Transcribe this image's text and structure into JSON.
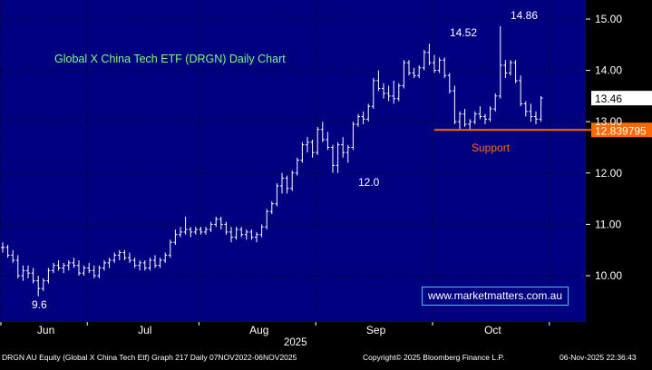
{
  "chart_data": {
    "type": "candlestick",
    "title": "Global X China Tech ETF (DRGN) Daily Chart",
    "ylim": [
      9.2,
      15.25
    ],
    "y_ticks": [
      10.0,
      11.0,
      12.0,
      13.0,
      14.0,
      15.0
    ],
    "y_tick_labels": [
      "10.00",
      "11.00",
      "12.00",
      "13.00",
      "14.00",
      "15.00"
    ],
    "x_ticks": [
      {
        "label": "Jun",
        "month": "2025-06"
      },
      {
        "label": "Jul",
        "month": "2025-07"
      },
      {
        "label": "Aug",
        "month": "2025-08"
      },
      {
        "label": "Sep",
        "month": "2025-09"
      },
      {
        "label": "Oct",
        "month": "2025-10"
      }
    ],
    "year_label": "2025",
    "last_price": 13.46,
    "last_price_label": "13.46",
    "support": {
      "value": 12.839795,
      "label": "12.839795",
      "text": "Support"
    },
    "annotations": [
      {
        "text": "9.6",
        "value": 9.6
      },
      {
        "text": "12.0",
        "value": 12.0
      },
      {
        "text": "14.52",
        "value": 14.52
      },
      {
        "text": "14.86",
        "value": 14.86
      }
    ],
    "bars": [
      [
        10.55,
        10.65,
        10.45,
        10.55
      ],
      [
        10.55,
        10.6,
        10.35,
        10.4
      ],
      [
        10.4,
        10.5,
        10.25,
        10.3
      ],
      [
        10.3,
        10.4,
        9.95,
        10.0
      ],
      [
        10.0,
        10.2,
        9.9,
        10.1
      ],
      [
        10.1,
        10.2,
        9.95,
        10.05
      ],
      [
        10.05,
        10.15,
        9.85,
        9.9
      ],
      [
        9.9,
        10.0,
        9.6,
        9.75
      ],
      [
        9.75,
        9.95,
        9.7,
        9.9
      ],
      [
        9.9,
        10.15,
        9.85,
        10.1
      ],
      [
        10.1,
        10.25,
        10.05,
        10.2
      ],
      [
        10.2,
        10.3,
        10.1,
        10.15
      ],
      [
        10.15,
        10.25,
        10.05,
        10.2
      ],
      [
        10.2,
        10.3,
        10.1,
        10.25
      ],
      [
        10.25,
        10.35,
        10.15,
        10.2
      ],
      [
        10.2,
        10.3,
        10.0,
        10.05
      ],
      [
        10.05,
        10.2,
        10.0,
        10.15
      ],
      [
        10.15,
        10.25,
        10.05,
        10.1
      ],
      [
        10.1,
        10.2,
        9.95,
        10.0
      ],
      [
        10.0,
        10.2,
        9.95,
        10.15
      ],
      [
        10.15,
        10.3,
        10.1,
        10.25
      ],
      [
        10.25,
        10.35,
        10.15,
        10.3
      ],
      [
        10.3,
        10.45,
        10.25,
        10.4
      ],
      [
        10.4,
        10.5,
        10.3,
        10.45
      ],
      [
        10.45,
        10.5,
        10.3,
        10.35
      ],
      [
        10.35,
        10.45,
        10.25,
        10.3
      ],
      [
        10.3,
        10.35,
        10.15,
        10.2
      ],
      [
        10.2,
        10.3,
        10.1,
        10.25
      ],
      [
        10.25,
        10.3,
        10.1,
        10.15
      ],
      [
        10.15,
        10.35,
        10.1,
        10.3
      ],
      [
        10.3,
        10.4,
        10.15,
        10.2
      ],
      [
        10.2,
        10.35,
        10.15,
        10.3
      ],
      [
        10.3,
        10.45,
        10.25,
        10.4
      ],
      [
        10.4,
        10.7,
        10.35,
        10.65
      ],
      [
        10.65,
        10.9,
        10.6,
        10.8
      ],
      [
        10.8,
        10.95,
        10.75,
        10.85
      ],
      [
        10.85,
        11.15,
        10.8,
        10.9
      ],
      [
        10.9,
        10.95,
        10.75,
        10.85
      ],
      [
        10.85,
        10.95,
        10.8,
        10.9
      ],
      [
        10.9,
        10.95,
        10.8,
        10.85
      ],
      [
        10.85,
        10.95,
        10.8,
        10.9
      ],
      [
        10.9,
        11.05,
        10.85,
        11.0
      ],
      [
        11.0,
        11.15,
        10.95,
        11.1
      ],
      [
        11.1,
        11.15,
        10.9,
        11.0
      ],
      [
        11.0,
        11.05,
        10.8,
        10.85
      ],
      [
        10.85,
        10.95,
        10.65,
        10.75
      ],
      [
        10.75,
        10.95,
        10.7,
        10.9
      ],
      [
        10.9,
        10.95,
        10.75,
        10.8
      ],
      [
        10.8,
        10.9,
        10.7,
        10.85
      ],
      [
        10.85,
        10.9,
        10.7,
        10.75
      ],
      [
        10.75,
        10.85,
        10.65,
        10.8
      ],
      [
        10.8,
        11.0,
        10.75,
        10.95
      ],
      [
        10.95,
        11.3,
        10.9,
        11.25
      ],
      [
        11.25,
        11.45,
        11.2,
        11.4
      ],
      [
        11.4,
        11.8,
        11.35,
        11.75
      ],
      [
        11.75,
        12.0,
        11.6,
        11.9
      ],
      [
        11.9,
        11.95,
        11.6,
        11.7
      ],
      [
        11.7,
        12.05,
        11.65,
        12.0
      ],
      [
        12.0,
        12.3,
        11.95,
        12.25
      ],
      [
        12.25,
        12.6,
        12.2,
        12.55
      ],
      [
        12.55,
        12.7,
        12.4,
        12.6
      ],
      [
        12.6,
        12.65,
        12.3,
        12.4
      ],
      [
        12.4,
        12.9,
        12.35,
        12.85
      ],
      [
        12.85,
        13.0,
        12.6,
        12.65
      ],
      [
        12.65,
        12.8,
        12.45,
        12.5
      ],
      [
        12.5,
        12.55,
        12.0,
        12.15
      ],
      [
        12.15,
        12.6,
        12.0,
        12.55
      ],
      [
        12.55,
        12.7,
        12.3,
        12.4
      ],
      [
        12.4,
        12.55,
        12.2,
        12.5
      ],
      [
        12.5,
        13.0,
        12.45,
        12.95
      ],
      [
        12.95,
        13.15,
        12.9,
        13.1
      ],
      [
        13.1,
        13.2,
        12.95,
        13.05
      ],
      [
        13.05,
        13.35,
        13.0,
        13.3
      ],
      [
        13.3,
        13.85,
        13.25,
        13.8
      ],
      [
        13.8,
        14.0,
        13.6,
        13.65
      ],
      [
        13.65,
        13.75,
        13.45,
        13.55
      ],
      [
        13.55,
        13.7,
        13.4,
        13.5
      ],
      [
        13.5,
        13.8,
        13.35,
        13.45
      ],
      [
        13.45,
        13.75,
        13.4,
        13.7
      ],
      [
        13.7,
        14.2,
        13.65,
        14.15
      ],
      [
        14.15,
        14.2,
        13.9,
        13.95
      ],
      [
        13.95,
        14.05,
        13.85,
        13.9
      ],
      [
        13.9,
        14.1,
        13.85,
        14.05
      ],
      [
        14.05,
        14.4,
        14.0,
        14.35
      ],
      [
        14.35,
        14.52,
        14.1,
        14.15
      ],
      [
        14.15,
        14.3,
        13.95,
        14.0
      ],
      [
        14.0,
        14.25,
        13.95,
        14.2
      ],
      [
        14.2,
        14.25,
        13.85,
        13.9
      ],
      [
        13.9,
        13.95,
        13.55,
        13.6
      ],
      [
        13.6,
        13.7,
        12.95,
        13.0
      ],
      [
        13.0,
        13.2,
        12.85,
        13.15
      ],
      [
        13.15,
        13.25,
        12.9,
        12.95
      ],
      [
        12.95,
        13.05,
        12.85,
        13.0
      ],
      [
        13.0,
        13.2,
        12.95,
        13.15
      ],
      [
        13.15,
        13.3,
        13.05,
        13.1
      ],
      [
        13.1,
        13.15,
        12.95,
        13.05
      ],
      [
        13.05,
        13.3,
        13.0,
        13.25
      ],
      [
        13.25,
        13.55,
        13.2,
        13.5
      ],
      [
        13.5,
        14.86,
        13.45,
        14.1
      ],
      [
        14.1,
        14.2,
        13.85,
        13.95
      ],
      [
        13.95,
        14.2,
        13.9,
        14.15
      ],
      [
        14.15,
        14.2,
        13.75,
        13.8
      ],
      [
        13.8,
        13.9,
        13.3,
        13.35
      ],
      [
        13.35,
        13.4,
        13.1,
        13.2
      ],
      [
        13.2,
        13.35,
        13.0,
        13.1
      ],
      [
        13.1,
        13.2,
        12.95,
        13.05
      ],
      [
        13.05,
        13.5,
        13.0,
        13.46
      ]
    ]
  },
  "footer": {
    "left": "DRGN AU Equity (Global X China Tech Etf) Graph 217 Daily 07NOV2022-06NOV2025",
    "center": "Copyright© 2025 Bloomberg Finance L.P.",
    "right": "06-Nov-2025 22:36:43"
  },
  "watermark": "www.marketmatters.com.au",
  "colors": {
    "background": "#000080",
    "axis_background": "#000000",
    "grid": "#000000",
    "candle": "#ffffff",
    "support": "#ff6a00",
    "title": "#7CFC7C"
  }
}
